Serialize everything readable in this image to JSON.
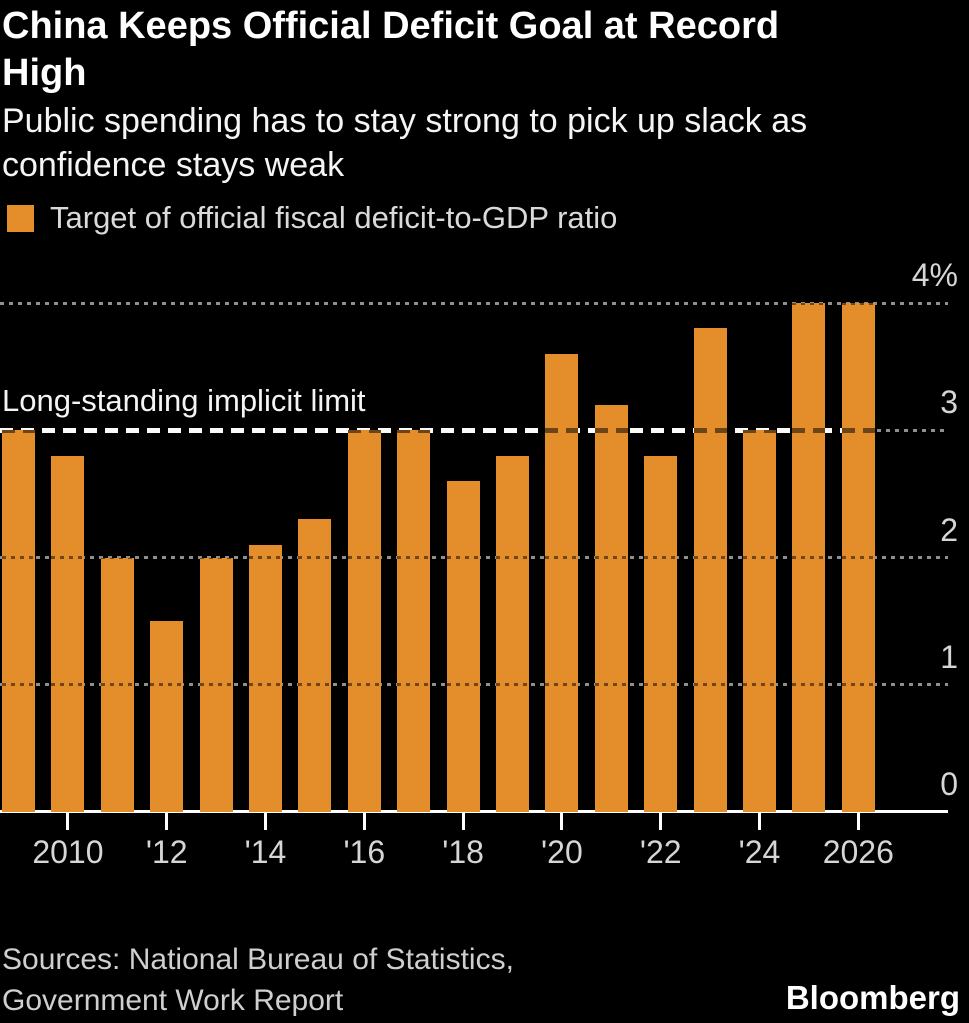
{
  "header": {
    "title": "China Keeps Official Deficit Goal at Record High",
    "subtitle": "Public spending has to stay strong to pick up slack as confidence stays weak"
  },
  "legend": {
    "label": "Target of official fiscal deficit-to-GDP ratio"
  },
  "colors": {
    "bar": "#E48D2B",
    "background": "#000000",
    "gridline": "#8f8f8f",
    "axis_text": "#d6d6d6",
    "limit_line": "#ffffff"
  },
  "chart_data": {
    "type": "bar",
    "title": "China Keeps Official Deficit Goal at Record High",
    "subtitle": "Public spending has to stay strong to pick up slack as confidence stays weak",
    "legend_entries": [
      "Target of official fiscal deficit-to-GDP ratio"
    ],
    "legend_position": "top-left",
    "grid": true,
    "x": [
      2009,
      2010,
      2011,
      2012,
      2013,
      2014,
      2015,
      2016,
      2017,
      2018,
      2019,
      2020,
      2021,
      2022,
      2023,
      2024,
      2025,
      2026
    ],
    "values": [
      3.0,
      2.8,
      2.0,
      1.5,
      2.0,
      2.1,
      2.3,
      3.0,
      3.0,
      2.6,
      2.8,
      3.6,
      3.2,
      2.8,
      3.8,
      3.0,
      4.0,
      4.0
    ],
    "ylim": [
      0,
      4
    ],
    "yticks": [
      {
        "value": 4,
        "label": "4%"
      },
      {
        "value": 3,
        "label": "3"
      },
      {
        "value": 2,
        "label": "2"
      },
      {
        "value": 1,
        "label": "1"
      },
      {
        "value": 0,
        "label": "0"
      }
    ],
    "xticks": [
      {
        "year": 2010,
        "label": "2010"
      },
      {
        "year": 2012,
        "label": "'12"
      },
      {
        "year": 2014,
        "label": "'14"
      },
      {
        "year": 2016,
        "label": "'16"
      },
      {
        "year": 2018,
        "label": "'18"
      },
      {
        "year": 2020,
        "label": "'20"
      },
      {
        "year": 2022,
        "label": "'22"
      },
      {
        "year": 2024,
        "label": "'24"
      },
      {
        "year": 2026,
        "label": "2026"
      }
    ],
    "annotation": {
      "label": "Long-standing implicit limit",
      "value": 3,
      "style": "dashed"
    }
  },
  "footer": {
    "sources": "Sources: National Bureau of Statistics, Government Work Report",
    "brand": "Bloomberg"
  }
}
